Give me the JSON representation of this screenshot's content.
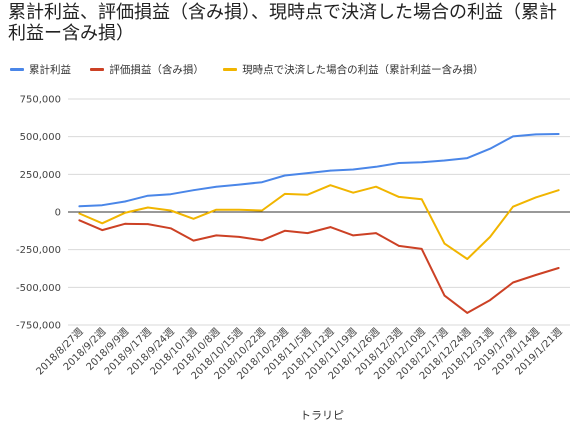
{
  "chart_data": {
    "type": "line",
    "title": "累計利益、評価損益（含み損）、現時点で決済した場合の利益（累計利益ー含み損）",
    "xlabel": "トラリピ",
    "ylabel": "",
    "ylim": [
      -750000,
      750000
    ],
    "yticks": [
      750000,
      500000,
      250000,
      0,
      -250000,
      -500000,
      -750000
    ],
    "ytick_labels": [
      "750,000",
      "500,000",
      "250,000",
      "0",
      "-250,000",
      "-500,000",
      "-750,000"
    ],
    "grid": true,
    "legend_position": "top-left",
    "categories": [
      "2018/8/27週",
      "2018/9/2週",
      "2018/9/9週",
      "2018/9/17週",
      "2018/9/24週",
      "2018/10/1週",
      "2018/10/8週",
      "2018/10/15週",
      "2018/10/22週",
      "2018/10/29週",
      "2018/11/5週",
      "2018/11/12週",
      "2018/11/19週",
      "2018/11/26週",
      "2018/12/3週",
      "2018/12/10週",
      "2018/12/17週",
      "2018/12/24週",
      "2018/12/31週",
      "2019/1/7週",
      "2019/1/14週",
      "2019/1/21週"
    ],
    "series": [
      {
        "name": "累計利益",
        "color": "#4a86e8",
        "values": [
          38000,
          45000,
          70000,
          108000,
          118000,
          145000,
          168000,
          182000,
          198000,
          242000,
          258000,
          275000,
          282000,
          300000,
          325000,
          330000,
          342000,
          358000,
          420000,
          502000,
          515000,
          518000
        ]
      },
      {
        "name": "評価損益（含み損）",
        "color": "#cc4125",
        "values": [
          -55000,
          -120000,
          -78000,
          -80000,
          -108000,
          -190000,
          -155000,
          -165000,
          -188000,
          -125000,
          -140000,
          -100000,
          -155000,
          -140000,
          -225000,
          -245000,
          -555000,
          -670000,
          -585000,
          -468000,
          -418000,
          -372000
        ]
      },
      {
        "name": "現時点で決済した場合の利益（累計利益ー含み損）",
        "color": "#f1b500",
        "values": [
          -10000,
          -75000,
          -5000,
          30000,
          10000,
          -45000,
          15000,
          15000,
          10000,
          120000,
          115000,
          178000,
          128000,
          168000,
          100000,
          85000,
          -210000,
          -312000,
          -165000,
          35000,
          97000,
          145000
        ]
      }
    ]
  }
}
